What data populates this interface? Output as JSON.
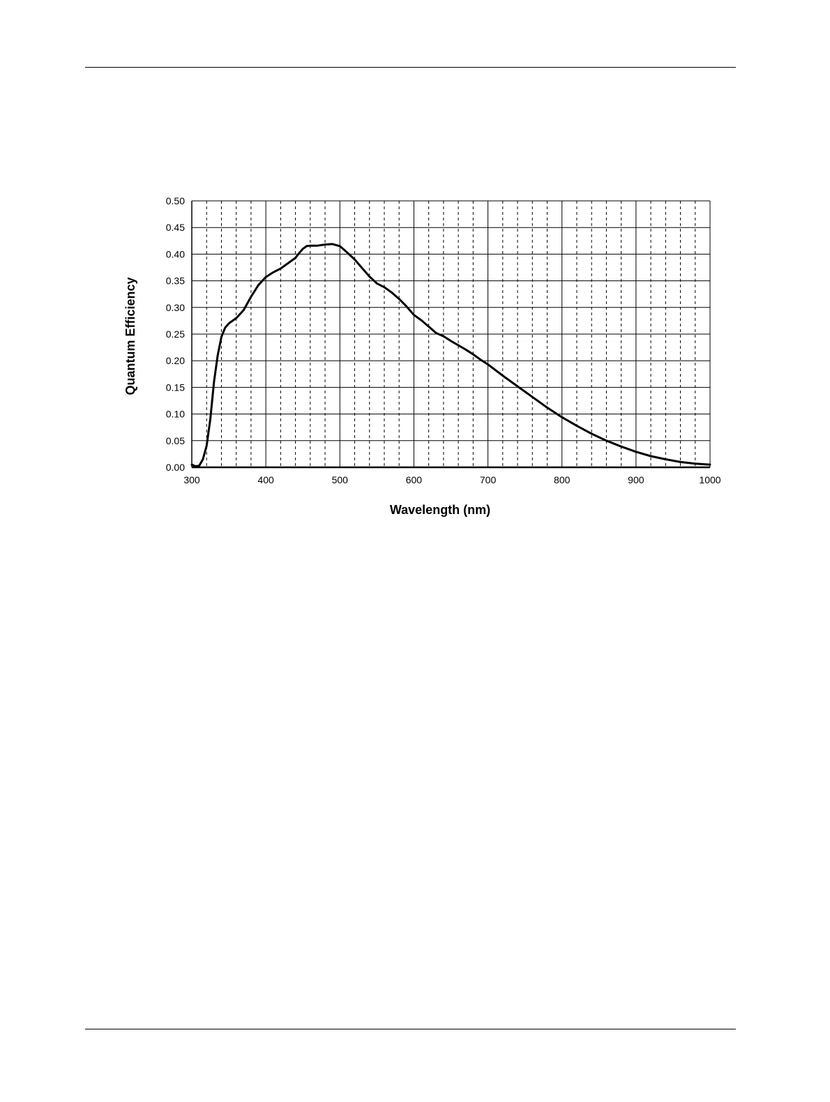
{
  "chart_data": {
    "type": "line",
    "title": "",
    "xlabel": "Wavelength (nm)",
    "ylabel": "Quantum Efficiency",
    "xlim": [
      300,
      1000
    ],
    "ylim": [
      0,
      0.5
    ],
    "x_ticks": [
      "300",
      "400",
      "500",
      "600",
      "700",
      "800",
      "900",
      "1000"
    ],
    "y_ticks": [
      "0.00",
      "0.05",
      "0.10",
      "0.15",
      "0.20",
      "0.25",
      "0.30",
      "0.35",
      "0.40",
      "0.45",
      "0.50"
    ],
    "grid": {
      "major_x_step": 100,
      "minor_x_step": 20,
      "minor_x_style": "dashed",
      "major_y_step": 0.05
    },
    "legend": "none",
    "line_color": "#000000",
    "series": [
      {
        "x": [
          300,
          305,
          310,
          315,
          320,
          325,
          330,
          335,
          340,
          345,
          350,
          360,
          370,
          380,
          390,
          400,
          410,
          420,
          430,
          440,
          445,
          450,
          455,
          460,
          470,
          480,
          490,
          500,
          510,
          520,
          530,
          540,
          550,
          560,
          570,
          580,
          590,
          600,
          610,
          620,
          630,
          640,
          650,
          660,
          670,
          680,
          690,
          700,
          720,
          740,
          760,
          780,
          800,
          820,
          840,
          860,
          880,
          900,
          920,
          940,
          960,
          980,
          1000
        ],
        "y": [
          0.005,
          0.002,
          0.003,
          0.015,
          0.04,
          0.09,
          0.16,
          0.21,
          0.245,
          0.262,
          0.27,
          0.28,
          0.295,
          0.32,
          0.342,
          0.357,
          0.366,
          0.373,
          0.383,
          0.393,
          0.402,
          0.41,
          0.415,
          0.416,
          0.416,
          0.418,
          0.419,
          0.415,
          0.403,
          0.39,
          0.374,
          0.358,
          0.345,
          0.338,
          0.328,
          0.316,
          0.302,
          0.286,
          0.276,
          0.264,
          0.252,
          0.246,
          0.237,
          0.229,
          0.221,
          0.212,
          0.202,
          0.193,
          0.172,
          0.152,
          0.132,
          0.112,
          0.094,
          0.078,
          0.063,
          0.05,
          0.039,
          0.029,
          0.021,
          0.015,
          0.01,
          0.007,
          0.005
        ]
      }
    ]
  }
}
